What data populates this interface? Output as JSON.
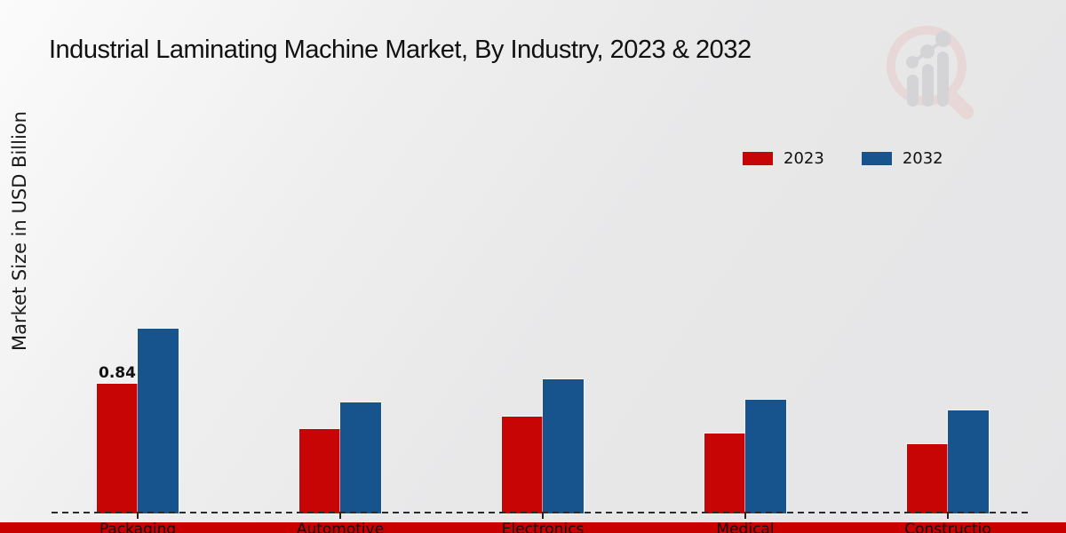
{
  "title": "Industrial Laminating Machine Market, By Industry, 2023 & 2032",
  "y_axis_label": "Market Size in USD Billion",
  "colors": {
    "series_2023": "#c80505",
    "series_2032": "#17538d",
    "x_band": "#c80000",
    "axis": "#2b2b2b",
    "background": "#eaeaec"
  },
  "watermark_icon": "magnifier-bar-chart-logo",
  "chart_data": {
    "type": "bar",
    "title": "Industrial Laminating Machine Market, By Industry, 2023 & 2032",
    "xlabel": "",
    "ylabel": "Market Size in USD Billion",
    "categories": [
      "Packaging",
      "Automotive",
      "Electronics",
      "Medical",
      "Constructio"
    ],
    "series": [
      {
        "name": "2023",
        "color": "#c80505",
        "values": [
          0.84,
          0.55,
          0.63,
          0.52,
          0.45
        ]
      },
      {
        "name": "2032",
        "color": "#17538d",
        "values": [
          1.2,
          0.72,
          0.87,
          0.74,
          0.67
        ]
      }
    ],
    "annotations": [
      {
        "series": "2023",
        "category": "Packaging",
        "text": "0.84"
      }
    ],
    "legend_position": "upper-right",
    "grid": false,
    "y_axis_ticks_visible": false,
    "x_axis_style": "dashed-line-with-red-band"
  }
}
